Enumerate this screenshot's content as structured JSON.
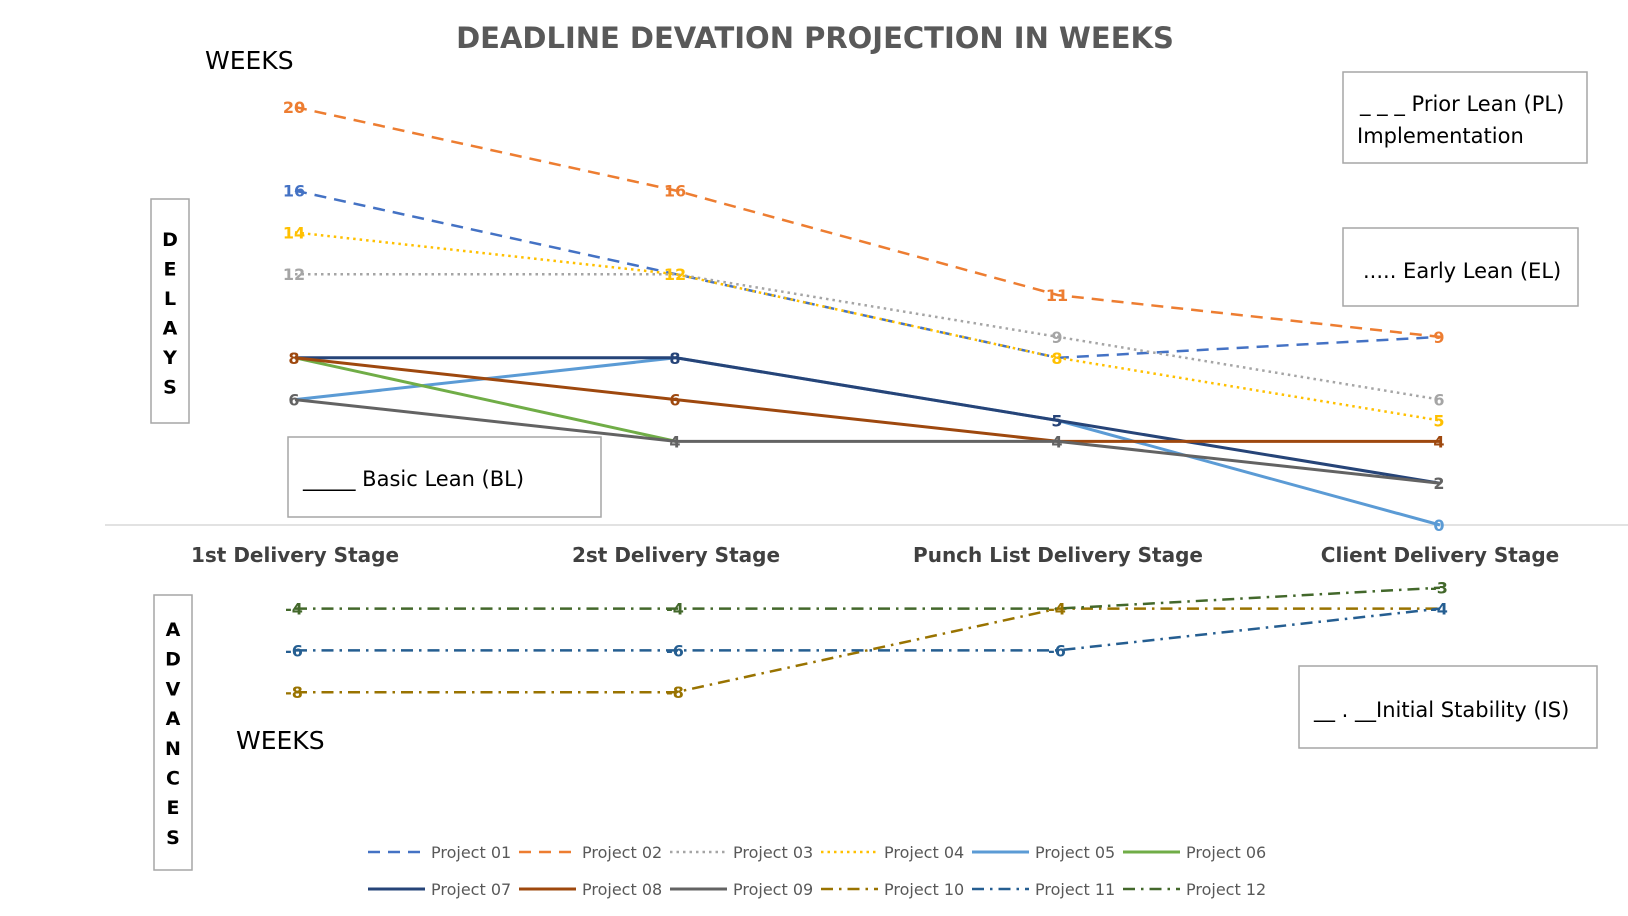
{
  "chart_data": {
    "type": "line",
    "title": "DEADLINE DEVATION PROJECTION IN  WEEKS",
    "ylabel_top": "WEEKS",
    "ylabel_bottom": "WEEKS",
    "delays_label": "DELAYS",
    "advances_label": "ADVANCES",
    "categories": [
      "1st Delivery Stage",
      "2st Delivery Stage",
      "Punch List Delivery Stage",
      "Client Delivery Stage"
    ],
    "ylim": [
      -10,
      21
    ],
    "grid": false,
    "legend_position": "bottom",
    "series": [
      {
        "name": "Project 01",
        "values": [
          16,
          12,
          8,
          9
        ],
        "color": "#4472C4",
        "dash": "dash"
      },
      {
        "name": "Project 02",
        "values": [
          20,
          16,
          11,
          9
        ],
        "color": "#ED7D31",
        "dash": "dash"
      },
      {
        "name": "Project 03",
        "values": [
          12,
          12,
          9,
          6
        ],
        "color": "#A5A5A5",
        "dash": "dot"
      },
      {
        "name": "Project 04",
        "values": [
          14,
          12,
          8,
          5
        ],
        "color": "#FFC000",
        "dash": "dot"
      },
      {
        "name": "Project 05",
        "values": [
          6,
          8,
          5,
          0
        ],
        "color": "#5B9BD5",
        "dash": "solid"
      },
      {
        "name": "Project 06",
        "values": [
          8,
          4,
          null,
          null
        ],
        "color": "#70AD47",
        "dash": "solid"
      },
      {
        "name": "Project 07",
        "values": [
          8,
          8,
          5,
          2
        ],
        "color": "#264478",
        "dash": "solid"
      },
      {
        "name": "Project 08",
        "values": [
          8,
          6,
          4,
          4
        ],
        "color": "#9E480E",
        "dash": "solid"
      },
      {
        "name": "Project 09",
        "values": [
          6,
          4,
          4,
          2
        ],
        "color": "#636363",
        "dash": "solid"
      },
      {
        "name": "Project 10",
        "values": [
          -8,
          -8,
          -4,
          -4
        ],
        "color": "#997300",
        "dash": "dashdot"
      },
      {
        "name": "Project 11",
        "values": [
          -6,
          -6,
          -6,
          -4
        ],
        "color": "#255E91",
        "dash": "dashdot"
      },
      {
        "name": "Project 12",
        "values": [
          -4,
          -4,
          -4,
          -3
        ],
        "color": "#43682B",
        "dash": "dashdot"
      }
    ],
    "annotations": [
      {
        "id": "pl",
        "lines": [
          "_ _ _ Prior Lean (PL)",
          "Implementation"
        ]
      },
      {
        "id": "el",
        "lines": [
          ".....  Early Lean (EL)"
        ]
      },
      {
        "id": "bl",
        "lines": [
          "_____  Basic Lean (BL)"
        ]
      },
      {
        "id": "is",
        "lines": [
          "__ . __Initial Stability (IS)"
        ]
      }
    ],
    "data_labels": [
      {
        "stage": 0,
        "value": 20,
        "text": "20",
        "color": "#ED7D31"
      },
      {
        "stage": 0,
        "value": 16,
        "text": "16",
        "color": "#4472C4"
      },
      {
        "stage": 0,
        "value": 14,
        "text": "14",
        "color": "#FFC000"
      },
      {
        "stage": 0,
        "value": 12,
        "text": "12",
        "color": "#A5A5A5"
      },
      {
        "stage": 0,
        "value": 8,
        "text": "8",
        "color": "#9E480E"
      },
      {
        "stage": 0,
        "value": 6,
        "text": "6",
        "color": "#636363"
      },
      {
        "stage": 0,
        "value": -4,
        "text": "-4",
        "color": "#43682B"
      },
      {
        "stage": 0,
        "value": -6,
        "text": "-6",
        "color": "#255E91"
      },
      {
        "stage": 0,
        "value": -8,
        "text": "-8",
        "color": "#997300"
      },
      {
        "stage": 1,
        "value": 16,
        "text": "16",
        "color": "#ED7D31"
      },
      {
        "stage": 1,
        "value": 12,
        "text": "12",
        "color": "#FFC000"
      },
      {
        "stage": 1,
        "value": 8,
        "text": "8",
        "color": "#264478"
      },
      {
        "stage": 1,
        "value": 6,
        "text": "6",
        "color": "#9E480E"
      },
      {
        "stage": 1,
        "value": 4,
        "text": "4",
        "color": "#636363"
      },
      {
        "stage": 1,
        "value": -4,
        "text": "-4",
        "color": "#43682B"
      },
      {
        "stage": 1,
        "value": -6,
        "text": "-6",
        "color": "#255E91"
      },
      {
        "stage": 1,
        "value": -8,
        "text": "-8",
        "color": "#997300"
      },
      {
        "stage": 2,
        "value": 11,
        "text": "11",
        "color": "#ED7D31"
      },
      {
        "stage": 2,
        "value": 9,
        "text": "9",
        "color": "#A5A5A5"
      },
      {
        "stage": 2,
        "value": 8,
        "text": "8",
        "color": "#FFC000"
      },
      {
        "stage": 2,
        "value": 5,
        "text": "5",
        "color": "#264478"
      },
      {
        "stage": 2,
        "value": 4,
        "text": "4",
        "color": "#636363"
      },
      {
        "stage": 2,
        "value": -4,
        "text": "-4",
        "color": "#997300"
      },
      {
        "stage": 2,
        "value": -6,
        "text": "-6",
        "color": "#255E91"
      },
      {
        "stage": 3,
        "value": 9,
        "text": "9",
        "color": "#ED7D31"
      },
      {
        "stage": 3,
        "value": 6,
        "text": "6",
        "color": "#A5A5A5"
      },
      {
        "stage": 3,
        "value": 5,
        "text": "5",
        "color": "#FFC000"
      },
      {
        "stage": 3,
        "value": 4,
        "text": "4",
        "color": "#9E480E"
      },
      {
        "stage": 3,
        "value": 2,
        "text": "2",
        "color": "#636363"
      },
      {
        "stage": 3,
        "value": 0,
        "text": "0",
        "color": "#5B9BD5"
      },
      {
        "stage": 3,
        "value": -3,
        "text": "-3",
        "color": "#43682B"
      },
      {
        "stage": 3,
        "value": -4,
        "text": "-4",
        "color": "#255E91"
      }
    ]
  }
}
